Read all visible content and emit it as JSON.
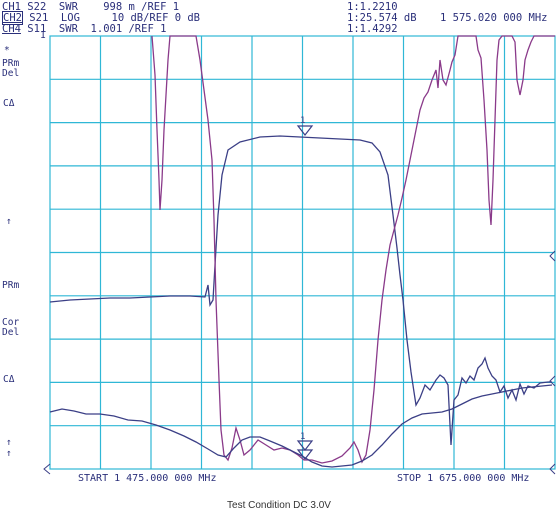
{
  "header": {
    "rows": [
      {
        "channel": "CH1",
        "param": "S22",
        "format": "SWR",
        "scale": "998 m /REF 1",
        "marker": "1:1.2210",
        "freq": ""
      },
      {
        "channel": "CH2",
        "param": "S21",
        "format": "LOG",
        "scale": "10 dB/REF 0 dB",
        "marker": "1:25.574 dB",
        "freq": "1 575.020 000 MHz"
      },
      {
        "channel": "CH4",
        "param": "S11",
        "format": "SWR",
        "scale": "1.001 /REF 1",
        "marker": "1:1.4292",
        "freq": ""
      }
    ]
  },
  "side_labels": {
    "ch1_ref": "1",
    "star": "*",
    "prm1": "PRm",
    "del1": "Del",
    "ca1": "CΔ",
    "up1": "↑",
    "prm2": "PRm",
    "cor": "Cor",
    "del2": "Del",
    "ca2": "CΔ",
    "up2": "↑",
    "up3": "↑"
  },
  "footer": {
    "start": "START 1 475.000 000 MHz",
    "stop": "STOP 1 675.000 000 MHz"
  },
  "caption": "Test Condition DC 3.0V",
  "marker_label": "1",
  "colors": {
    "grid": "#2fb7d6",
    "trace_blue": "#3b3f86",
    "trace_purple": "#8a3a8a",
    "text": "#2a2f7a"
  }
}
